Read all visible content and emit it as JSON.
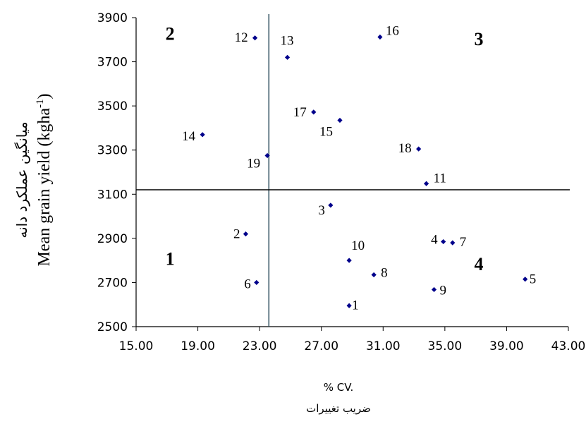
{
  "chart_data": {
    "type": "scatter",
    "title": "",
    "xlabel_en": "% CV.",
    "xlabel_fa": "ضریب تغییرات",
    "ylabel_fa": "میانگین عملکرد دانه",
    "ylabel_en_prefix": "Mean grain yield (kgha",
    "ylabel_en_sup": "-1",
    "ylabel_en_suffix": ")",
    "xlim": [
      15,
      43
    ],
    "ylim": [
      2500,
      3900
    ],
    "x_ticks": [
      "15.00",
      "19.00",
      "23.00",
      "27.00",
      "31.00",
      "35.00",
      "39.00",
      "43.00"
    ],
    "y_ticks": [
      "2500",
      "2700",
      "2900",
      "3100",
      "3300",
      "3500",
      "3700",
      "3900"
    ],
    "ref_x": 23.6,
    "ref_y": 3120,
    "marker_color": "#00008b",
    "grid": false,
    "quadrants": [
      {
        "label": "1",
        "x": 17.2,
        "y": 2780
      },
      {
        "label": "2",
        "x": 17.2,
        "y": 3800
      },
      {
        "label": "3",
        "x": 37.2,
        "y": 3775
      },
      {
        "label": "4",
        "x": 37.2,
        "y": 2755
      }
    ],
    "points": [
      {
        "label": "1",
        "x": 28.8,
        "y": 2595
      },
      {
        "label": "2",
        "x": 22.1,
        "y": 2920
      },
      {
        "label": "3",
        "x": 27.6,
        "y": 3050
      },
      {
        "label": "4",
        "x": 34.9,
        "y": 2885
      },
      {
        "label": "5",
        "x": 40.2,
        "y": 2715
      },
      {
        "label": "6",
        "x": 22.8,
        "y": 2700
      },
      {
        "label": "7",
        "x": 35.5,
        "y": 2880
      },
      {
        "label": "8",
        "x": 30.4,
        "y": 2735
      },
      {
        "label": "9",
        "x": 34.3,
        "y": 2668
      },
      {
        "label": "10",
        "x": 28.8,
        "y": 2800
      },
      {
        "label": "11",
        "x": 33.8,
        "y": 3148
      },
      {
        "label": "12",
        "x": 22.7,
        "y": 3808
      },
      {
        "label": "13",
        "x": 24.8,
        "y": 3720
      },
      {
        "label": "14",
        "x": 19.3,
        "y": 3370
      },
      {
        "label": "15",
        "x": 28.2,
        "y": 3435
      },
      {
        "label": "16",
        "x": 30.8,
        "y": 3812
      },
      {
        "label": "17",
        "x": 26.5,
        "y": 3472
      },
      {
        "label": "18",
        "x": 33.3,
        "y": 3305
      },
      {
        "label": "19",
        "x": 23.5,
        "y": 3275
      }
    ]
  }
}
